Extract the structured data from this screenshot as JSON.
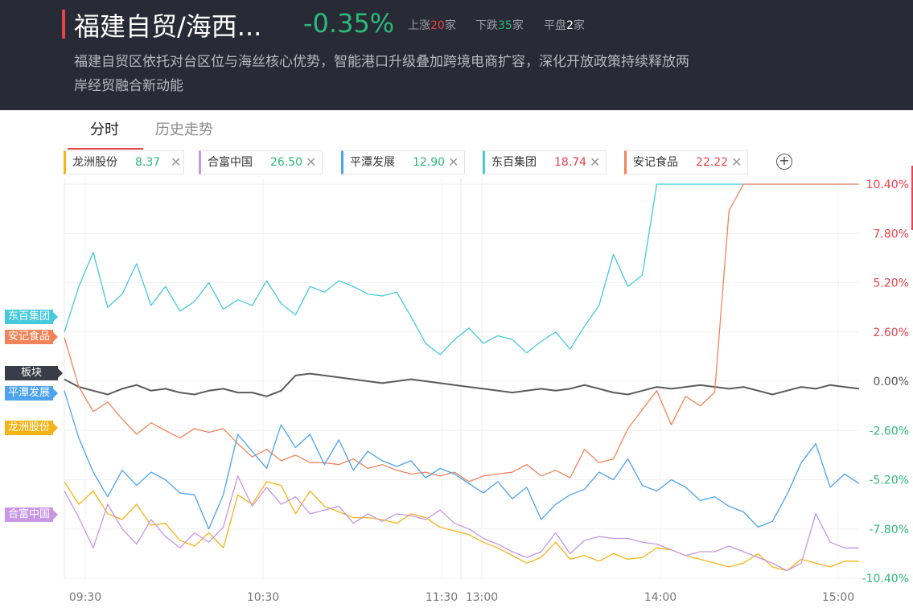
{
  "header": {
    "title": "福建自贸/海西...",
    "change_pct": "-0.35%",
    "up_label": "上涨",
    "up_count": "20",
    "up_unit": "家",
    "down_label": "下跌",
    "down_count": "35",
    "down_unit": "家",
    "flat_label": "平盘",
    "flat_count": "2",
    "flat_unit": "家",
    "description": "福建自贸区依托对台区位与海丝核心优势，智能港口升级叠加跨境电商扩容，深化开放政策持续释放两岸经贸融合新动能"
  },
  "tabs": [
    {
      "label": "分时",
      "active": true
    },
    {
      "label": "历史走势",
      "active": false
    }
  ],
  "chips": [
    {
      "name": "龙洲股份",
      "price": "8.37",
      "price_color": "#2bba7b",
      "color": "#f5b318"
    },
    {
      "name": "合富中国",
      "price": "26.50",
      "price_color": "#2bba7b",
      "color": "#c796e5"
    },
    {
      "name": "平潭发展",
      "price": "12.90",
      "price_color": "#2bba7b",
      "color": "#4da3ee"
    },
    {
      "name": "东百集团",
      "price": "18.74",
      "price_color": "#e8424c",
      "color": "#45c9db"
    },
    {
      "name": "安记食品",
      "price": "22.22",
      "price_color": "#e8424c",
      "color": "#f2845a"
    }
  ],
  "chart_data": {
    "type": "line",
    "x_ticks": [
      "09:30",
      "10:30",
      "11:30",
      "13:00",
      "14:00",
      "15:00"
    ],
    "y_ticks": [
      "10.40%",
      "7.80%",
      "5.20%",
      "2.60%",
      "0.00%",
      "-2.60%",
      "-5.20%",
      "-7.80%",
      "-10.40%"
    ],
    "ylim": [
      -10.4,
      10.4
    ],
    "grid": true,
    "series": [
      {
        "name": "板块",
        "color": "#5b5b5b",
        "values": [
          0.1,
          -0.3,
          -0.5,
          -0.7,
          -0.4,
          -0.2,
          -0.5,
          -0.4,
          -0.6,
          -0.7,
          -0.5,
          -0.4,
          -0.6,
          -0.6,
          -0.8,
          -0.5,
          0.3,
          0.4,
          0.3,
          0.2,
          0.1,
          0.0,
          -0.1,
          0.0,
          0.1,
          0.0,
          -0.1,
          -0.2,
          -0.3,
          -0.4,
          -0.5,
          -0.6,
          -0.5,
          -0.4,
          -0.5,
          -0.4,
          -0.2,
          -0.4,
          -0.6,
          -0.7,
          -0.5,
          -0.3,
          -0.4,
          -0.3,
          -0.2,
          -0.3,
          -0.4,
          -0.3,
          -0.5,
          -0.7,
          -0.5,
          -0.3,
          -0.4,
          -0.2,
          -0.3,
          -0.4
        ]
      },
      {
        "name": "东百集团",
        "color": "#45c9db",
        "values": [
          2.6,
          5.0,
          6.8,
          3.9,
          4.6,
          6.2,
          4.0,
          5.0,
          3.7,
          4.2,
          5.2,
          3.8,
          4.3,
          4.0,
          5.3,
          4.1,
          3.5,
          5.0,
          4.7,
          5.3,
          5.0,
          4.6,
          4.5,
          4.7,
          3.4,
          2.0,
          1.4,
          2.2,
          2.8,
          2.0,
          2.4,
          2.2,
          1.5,
          2.1,
          2.6,
          1.7,
          2.9,
          4.0,
          6.7,
          5.0,
          5.6,
          10.4,
          10.4,
          10.4,
          10.4,
          10.4,
          10.4,
          10.4,
          10.4,
          10.4,
          10.4,
          10.4,
          10.4,
          10.4,
          10.4,
          10.4
        ]
      },
      {
        "name": "安记食品",
        "color": "#f2845a",
        "values": [
          2.3,
          -0.3,
          -1.6,
          -1.1,
          -2.0,
          -2.8,
          -2.2,
          -2.6,
          -3.0,
          -2.5,
          -2.7,
          -2.5,
          -3.3,
          -4.0,
          -3.6,
          -4.2,
          -3.9,
          -4.3,
          -4.3,
          -4.4,
          -4.1,
          -4.6,
          -4.4,
          -4.7,
          -4.9,
          -4.8,
          -5.0,
          -4.8,
          -5.3,
          -5.0,
          -4.9,
          -4.8,
          -4.4,
          -5.0,
          -4.7,
          -5.1,
          -3.6,
          -4.3,
          -4.1,
          -2.5,
          -1.5,
          -0.5,
          -2.3,
          -0.8,
          -1.3,
          -0.6,
          9.0,
          10.4,
          10.4,
          10.4,
          10.4,
          10.4,
          10.4,
          10.4,
          10.4,
          10.4
        ]
      },
      {
        "name": "平潭发展",
        "color": "#4da3ee",
        "values": [
          -0.5,
          -3.0,
          -4.8,
          -6.1,
          -4.7,
          -5.5,
          -4.8,
          -5.2,
          -5.9,
          -6.0,
          -7.8,
          -6.0,
          -2.8,
          -3.7,
          -4.6,
          -2.3,
          -3.5,
          -2.8,
          -4.4,
          -3.1,
          -4.7,
          -3.7,
          -4.2,
          -4.5,
          -4.2,
          -5.1,
          -4.6,
          -4.9,
          -5.4,
          -5.9,
          -5.3,
          -6.2,
          -5.6,
          -7.3,
          -6.5,
          -6.0,
          -5.7,
          -4.8,
          -5.2,
          -4.1,
          -5.5,
          -5.8,
          -5.2,
          -5.6,
          -6.3,
          -6.1,
          -6.6,
          -6.9,
          -7.7,
          -7.4,
          -6.0,
          -4.3,
          -3.3,
          -5.6,
          -4.9,
          -5.4
        ]
      },
      {
        "name": "龙洲股份",
        "color": "#f5b318",
        "values": [
          -5.3,
          -6.5,
          -5.8,
          -7.0,
          -7.3,
          -6.5,
          -7.6,
          -7.5,
          -8.4,
          -8.7,
          -8.0,
          -8.8,
          -6.0,
          -6.5,
          -5.3,
          -5.5,
          -7.0,
          -5.8,
          -6.6,
          -6.9,
          -7.2,
          -7.2,
          -7.3,
          -7.5,
          -7.0,
          -7.2,
          -7.7,
          -7.9,
          -8.1,
          -8.5,
          -8.8,
          -9.2,
          -9.6,
          -9.3,
          -8.5,
          -9.4,
          -9.2,
          -9.5,
          -9.1,
          -9.4,
          -9.3,
          -8.8,
          -8.9,
          -9.2,
          -9.4,
          -9.6,
          -9.8,
          -9.6,
          -9.1,
          -9.8,
          -10.0,
          -9.4,
          -9.6,
          -9.8,
          -9.5,
          -9.5
        ]
      },
      {
        "name": "合富中国",
        "color": "#c796e5",
        "values": [
          -5.8,
          -7.2,
          -8.8,
          -6.5,
          -7.8,
          -8.6,
          -7.3,
          -8.2,
          -8.8,
          -8.0,
          -8.5,
          -7.7,
          -5.0,
          -6.6,
          -5.6,
          -6.5,
          -6.1,
          -7.0,
          -6.8,
          -6.6,
          -7.5,
          -7.0,
          -7.4,
          -7.0,
          -7.1,
          -7.3,
          -6.8,
          -7.5,
          -7.8,
          -8.3,
          -8.6,
          -9.0,
          -9.3,
          -9.0,
          -8.0,
          -9.1,
          -8.4,
          -8.2,
          -8.3,
          -8.3,
          -8.5,
          -8.6,
          -8.9,
          -9.2,
          -9.0,
          -9.0,
          -8.7,
          -9.0,
          -9.3,
          -9.6,
          -10.0,
          -9.6,
          -7.0,
          -8.5,
          -8.8,
          -8.8
        ]
      }
    ]
  },
  "badges": [
    {
      "name": "东百集团",
      "color": "#45c9db"
    },
    {
      "name": "安记食品",
      "color": "#f2845a"
    },
    {
      "name": "板块",
      "color": "#3a3d47"
    },
    {
      "name": "平潭发展",
      "color": "#4da3ee"
    },
    {
      "name": "龙洲股份",
      "color": "#f5b318"
    },
    {
      "name": "合富中国",
      "color": "#c796e5"
    }
  ]
}
